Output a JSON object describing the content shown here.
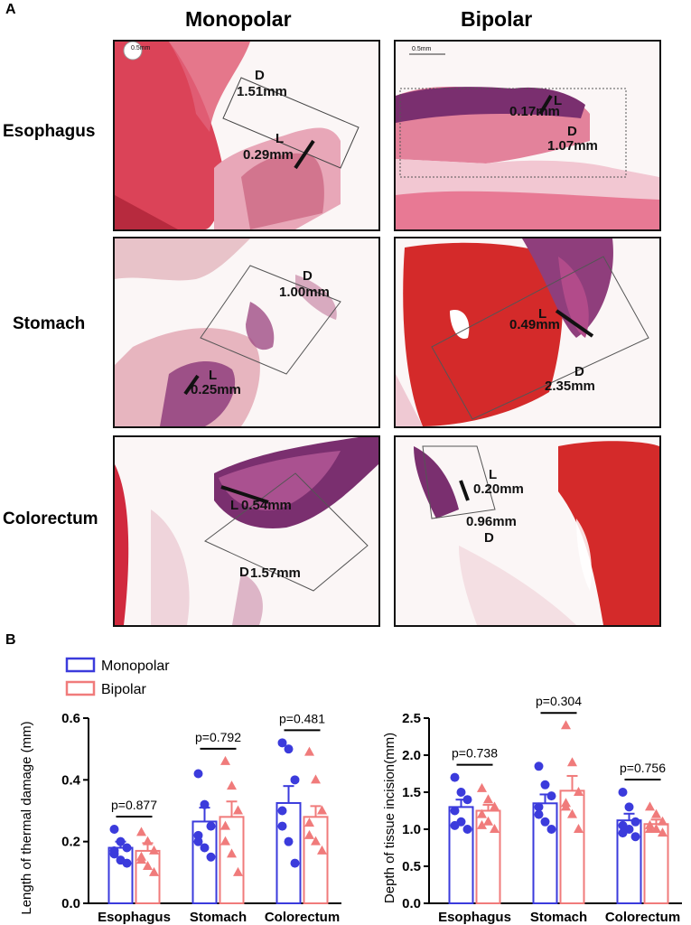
{
  "panel_a": {
    "letter": "A",
    "columns": [
      "Monopolar",
      "Bipolar"
    ],
    "rows": [
      "Esophagus",
      "Stomach",
      "Colorectum"
    ],
    "scale_bar_label": "0.5mm",
    "annotations": {
      "esophagus_monopolar": {
        "L": "L",
        "L_value": "0.29mm",
        "D": "D",
        "D_value": "1.51mm"
      },
      "esophagus_bipolar": {
        "L": "L",
        "L_value": "0.17mm",
        "D": "D",
        "D_value": "1.07mm"
      },
      "stomach_monopolar": {
        "L": "L",
        "L_value": "0.25mm",
        "D": "D",
        "D_value": "1.00mm"
      },
      "stomach_bipolar": {
        "L": "L",
        "L_value": "0.49mm",
        "D": "D",
        "D_value": "2.35mm"
      },
      "colorectum_monopolar": {
        "L": "L",
        "L_value": "0.54mm",
        "D": "D",
        "D_value": "1.57mm"
      },
      "colorectum_bipolar": {
        "L": "L",
        "L_value": "0.20mm",
        "D": "D",
        "D_value": "0.96mm"
      }
    }
  },
  "panel_b": {
    "letter": "B",
    "legend": [
      "Monopolar",
      "Bipolar"
    ]
  },
  "colors": {
    "monopolar": "#3b3bdc",
    "bipolar": "#f07b7b",
    "tissue_red": "#c8283a",
    "tissue_pink": "#e58aa0",
    "tissue_purple": "#7a2f6f"
  },
  "chart_data": [
    {
      "type": "bar",
      "title": "",
      "xlabel": "",
      "ylabel": "Length of thermal damage (mm)",
      "ylim": [
        0,
        0.6
      ],
      "yticks": [
        0,
        0.2,
        0.4,
        0.6
      ],
      "ytick_labels": [
        "0.0",
        "0.2",
        "0.4",
        "0.6"
      ],
      "categories": [
        "Esophagus",
        "Stomach",
        "Colorectum"
      ],
      "series": [
        {
          "name": "Monopolar",
          "values": [
            0.18,
            0.265,
            0.325
          ],
          "errors": [
            0.02,
            0.045,
            0.055
          ],
          "points": [
            [
              0.24,
              0.2,
              0.18,
              0.16,
              0.14,
              0.13,
              0.17
            ],
            [
              0.42,
              0.32,
              0.25,
              0.22,
              0.18,
              0.15,
              0.2
            ],
            [
              0.52,
              0.5,
              0.4,
              0.25,
              0.2,
              0.13,
              0.3
            ]
          ]
        },
        {
          "name": "Bipolar",
          "values": [
            0.17,
            0.28,
            0.28
          ],
          "errors": [
            0.025,
            0.05,
            0.035
          ],
          "points": [
            [
              0.23,
              0.2,
              0.17,
              0.15,
              0.12,
              0.1,
              0.14
            ],
            [
              0.46,
              0.38,
              0.3,
              0.25,
              0.16,
              0.1,
              0.2
            ],
            [
              0.49,
              0.4,
              0.3,
              0.26,
              0.2,
              0.17,
              0.22
            ]
          ]
        }
      ],
      "annotations": [
        "p=0.877",
        "p=0.792",
        "p=0.481"
      ]
    },
    {
      "type": "bar",
      "title": "",
      "xlabel": "",
      "ylabel": "Depth of tissue incision(mm)",
      "ylim": [
        0,
        2.5
      ],
      "yticks": [
        0,
        0.5,
        1.0,
        1.5,
        2.0,
        2.5
      ],
      "ytick_labels": [
        "0.0",
        "0.5",
        "1.0",
        "1.5",
        "2.0",
        "2.5"
      ],
      "categories": [
        "Esophagus",
        "Stomach",
        "Colorectum"
      ],
      "series": [
        {
          "name": "Monopolar",
          "values": [
            1.3,
            1.35,
            1.12
          ],
          "errors": [
            0.1,
            0.12,
            0.09
          ],
          "points": [
            [
              1.7,
              1.5,
              1.4,
              1.25,
              1.1,
              1.0,
              1.05
            ],
            [
              1.85,
              1.6,
              1.45,
              1.3,
              1.1,
              1.0,
              1.2
            ],
            [
              1.5,
              1.3,
              1.1,
              1.05,
              1.0,
              0.9,
              0.95
            ]
          ]
        },
        {
          "name": "Bipolar",
          "values": [
            1.25,
            1.52,
            1.07
          ],
          "errors": [
            0.08,
            0.2,
            0.06
          ],
          "points": [
            [
              1.55,
              1.4,
              1.3,
              1.2,
              1.1,
              1.0,
              1.05
            ],
            [
              2.4,
              1.9,
              1.5,
              1.35,
              1.2,
              1.0,
              1.3
            ],
            [
              1.3,
              1.2,
              1.1,
              1.0,
              1.0,
              0.95,
              1.05
            ]
          ]
        }
      ],
      "annotations": [
        "p=0.738",
        "p=0.304",
        "p=0.756"
      ]
    }
  ]
}
